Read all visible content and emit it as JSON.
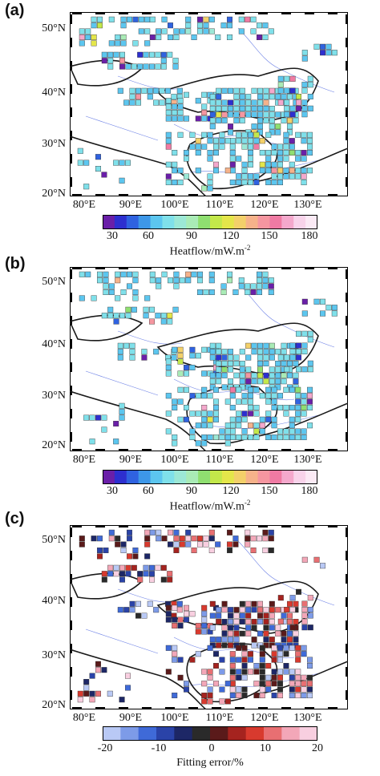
{
  "panels": [
    {
      "label": "(a)",
      "lat_labels": [
        "50°N",
        "40°N",
        "30°N",
        "20°N"
      ],
      "lon_labels": [
        "80°E",
        "90°E",
        "100°E",
        "110°E",
        "120°E",
        "130°E"
      ],
      "colorbar": {
        "ticks": [
          "30",
          "60",
          "90",
          "120",
          "150",
          "180"
        ],
        "title": "Heatflow/mW.m",
        "title_sup": "-2",
        "colors": [
          "#6a1fa8",
          "#2d2fcf",
          "#2f62e0",
          "#3d97e8",
          "#5cc6ef",
          "#7fe0ea",
          "#9ce8d6",
          "#a9ebb6",
          "#8fdf70",
          "#c3e84a",
          "#e4e64a",
          "#f3d06a",
          "#f6b28a",
          "#f596a0",
          "#ef7aa3",
          "#f4a8cc",
          "#f8d3ea",
          "#fbeaf5"
        ]
      }
    },
    {
      "label": "(b)",
      "lat_labels": [
        "50°N",
        "40°N",
        "30°N",
        "20°N"
      ],
      "lon_labels": [
        "80°E",
        "90°E",
        "100°E",
        "110°E",
        "120°E",
        "130°E"
      ],
      "colorbar": {
        "ticks": [
          "30",
          "60",
          "90",
          "120",
          "150",
          "180"
        ],
        "title": "Heatflow/mW.m",
        "title_sup": "-2",
        "colors": [
          "#6a1fa8",
          "#2d2fcf",
          "#2f62e0",
          "#3d97e8",
          "#5cc6ef",
          "#7fe0ea",
          "#9ce8d6",
          "#a9ebb6",
          "#8fdf70",
          "#c3e84a",
          "#e4e64a",
          "#f3d06a",
          "#f6b28a",
          "#f596a0",
          "#ef7aa3",
          "#f4a8cc",
          "#f8d3ea",
          "#fbeaf5"
        ]
      }
    },
    {
      "label": "(c)",
      "lat_labels": [
        "50°N",
        "40°N",
        "30°N",
        "20°N"
      ],
      "lon_labels": [
        "80°E",
        "90°E",
        "100°E",
        "110°E",
        "120°E",
        "130°E"
      ],
      "colorbar": {
        "ticks": [
          "-20",
          "-10",
          "0",
          "10",
          "20"
        ],
        "title": "Fitting error/%",
        "title_sup": "",
        "colors": [
          "#b9c9f5",
          "#7d9be8",
          "#3f6ad8",
          "#2a43a8",
          "#1d2766",
          "#2a2a2a",
          "#5a1a1a",
          "#a5231f",
          "#d83a2e",
          "#e86f72",
          "#f3a7b8",
          "#f8cfe0"
        ]
      }
    }
  ]
}
